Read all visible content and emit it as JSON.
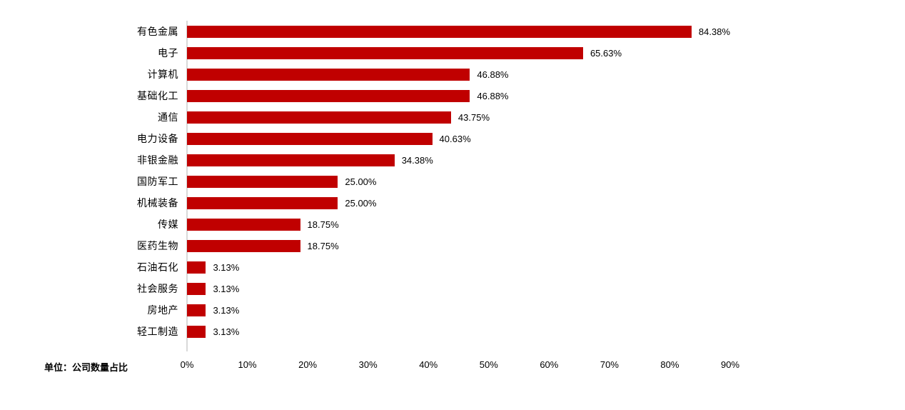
{
  "chart_data": {
    "type": "bar",
    "orientation": "horizontal",
    "title": "",
    "xlabel": "",
    "ylabel": "",
    "unit_note": "单位：公司数量占比",
    "categories": [
      "有色金属",
      "电子",
      "计算机",
      "基础化工",
      "通信",
      "电力设备",
      "非银金融",
      "国防军工",
      "机械装备",
      "传媒",
      "医药生物",
      "石油石化",
      "社会服务",
      "房地产",
      "轻工制造"
    ],
    "values": [
      84.38,
      65.63,
      46.88,
      46.88,
      43.75,
      40.63,
      34.38,
      25.0,
      25.0,
      18.75,
      18.75,
      3.13,
      3.13,
      3.13,
      3.13
    ],
    "value_labels": [
      "84.38%",
      "65.63%",
      "46.88%",
      "46.88%",
      "43.75%",
      "40.63%",
      "34.38%",
      "25.00%",
      "25.00%",
      "18.75%",
      "18.75%",
      "3.13%",
      "3.13%",
      "3.13%",
      "3.13%"
    ],
    "axis": {
      "min": 0,
      "max": 90,
      "tick_labels": [
        "0%",
        "10%",
        "20%",
        "30%",
        "40%",
        "50%",
        "60%",
        "70%",
        "80%",
        "90%"
      ],
      "tick_values": [
        0,
        10,
        20,
        30,
        40,
        50,
        60,
        70,
        80,
        90
      ]
    },
    "legend": null,
    "grid": false,
    "colors": {
      "bar": "#C00000",
      "axis_line": "#D9D9D9",
      "text": "#000000",
      "background": "#FFFFFF"
    }
  }
}
